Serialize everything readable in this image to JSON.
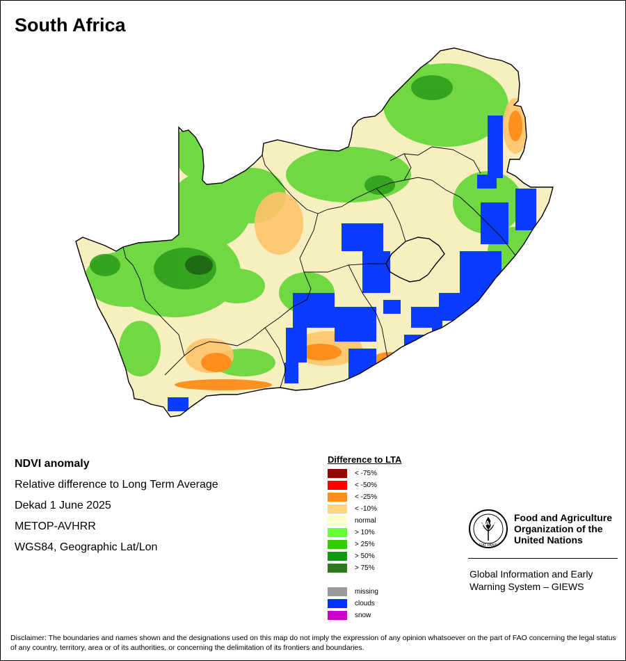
{
  "map": {
    "title": "South Africa",
    "country_fill": "#f8efc0",
    "border_color": "#000000"
  },
  "info": {
    "heading": "NDVI anomaly",
    "line1": "Relative difference to Long Term Average",
    "line2": "Dekad 1 June 2025",
    "line3": "METOP-AVHRR",
    "line4": "WGS84, Geographic Lat/Lon"
  },
  "legend": {
    "title": "Difference to LTA",
    "items": [
      {
        "label": "< -75%",
        "color": "#990000"
      },
      {
        "label": "< -50%",
        "color": "#ff0000"
      },
      {
        "label": "< -25%",
        "color": "#ff8c1a"
      },
      {
        "label": "< -10%",
        "color": "#ffd37f"
      },
      {
        "label": "normal",
        "color": "#ffffcc"
      },
      {
        "label": "> 10%",
        "color": "#66ff33"
      },
      {
        "label": "> 25%",
        "color": "#33cc00"
      },
      {
        "label": "> 50%",
        "color": "#119911"
      },
      {
        "label": "> 75%",
        "color": "#2d7a1e"
      }
    ],
    "extra_items": [
      {
        "label": "missing",
        "color": "#999999"
      },
      {
        "label": "clouds",
        "color": "#0033ff"
      },
      {
        "label": "snow",
        "color": "#cc00cc"
      }
    ]
  },
  "org": {
    "logo_icon": "fao-logo-icon",
    "logo_text_top": "FAO",
    "logo_text_bottom": "FIAT PANIS",
    "name_line1": "Food and Agriculture",
    "name_line2": "Organization of the",
    "name_line3": "United Nations",
    "giews_line1": "Global Information and Early",
    "giews_line2": "Warning System – GIEWS"
  },
  "disclaimer": {
    "text": "Disclaimer: The boundaries and names shown and the designations used on this map do not imply the expression of any opinion whatsoever on the part of FAO concerning the legal status of any country, territory, area or of its authorities, or concerning the delimitation of its frontiers and boundaries."
  }
}
